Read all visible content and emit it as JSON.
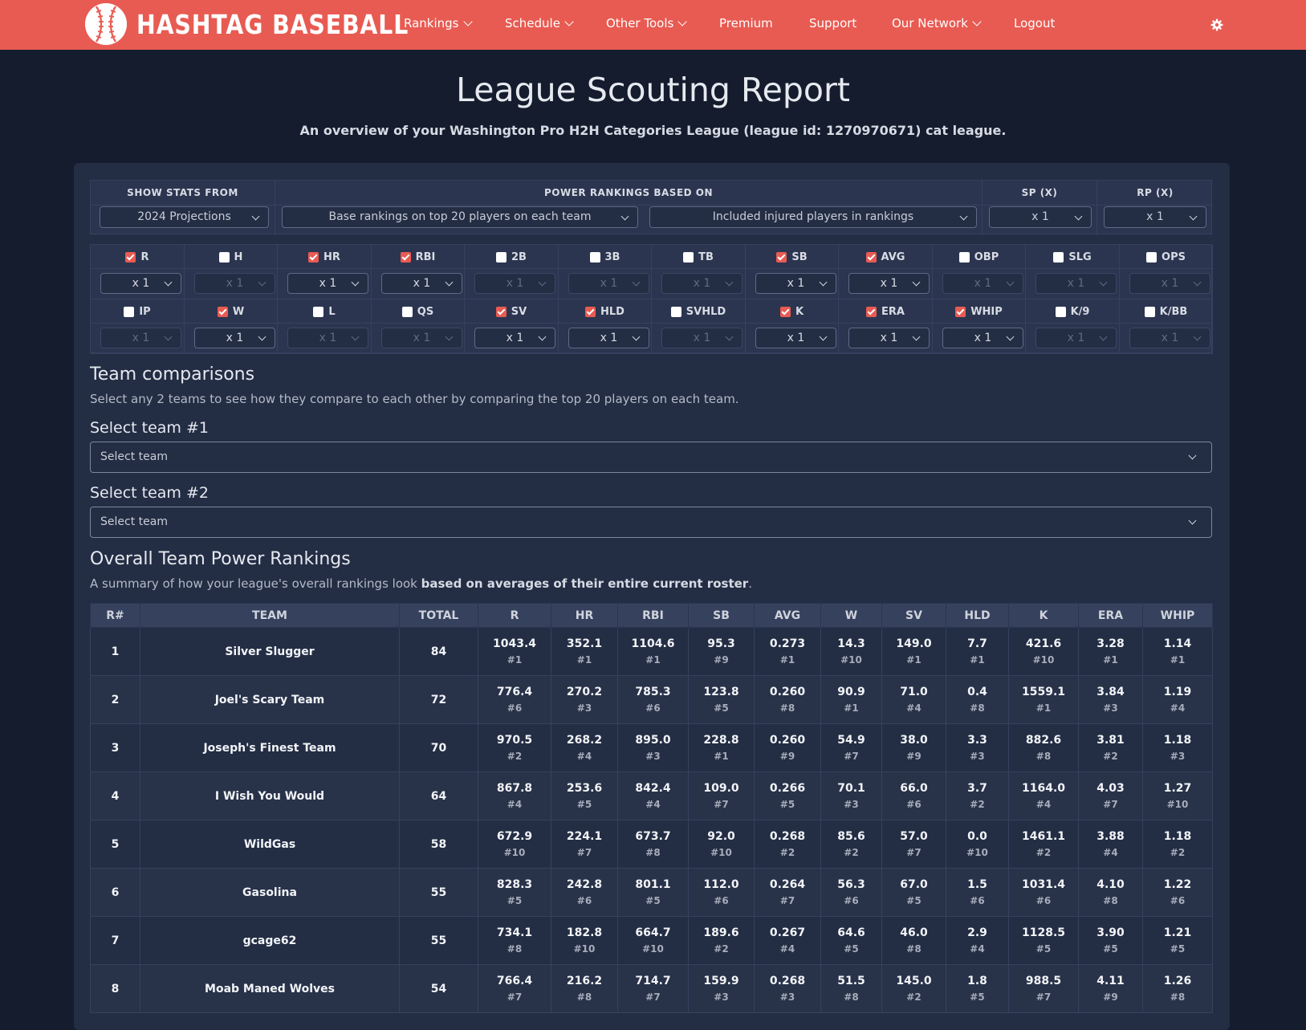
{
  "brand": {
    "name": "HASHTAG BASEBALL"
  },
  "nav": {
    "items": [
      {
        "label": "Rankings",
        "dropdown": true
      },
      {
        "label": "Schedule",
        "dropdown": true
      },
      {
        "label": "Other Tools",
        "dropdown": true
      },
      {
        "label": "Premium",
        "dropdown": false
      },
      {
        "label": "Support",
        "dropdown": false
      },
      {
        "label": "Our Network",
        "dropdown": true
      },
      {
        "label": "Logout",
        "dropdown": false
      }
    ]
  },
  "colors": {
    "accent": "#e85b52",
    "background": "#141c2e",
    "panel": "#232d44"
  },
  "page": {
    "title": "League Scouting Report",
    "subtitle": "An overview of your Washington Pro H2H Categories League (league id: 1270970671) cat league."
  },
  "settings": {
    "show_stats_header": "SHOW STATS FROM",
    "power_header": "POWER RANKINGS BASED ON",
    "sp_header": "SP (X)",
    "rp_header": "RP (X)",
    "stats_source": "2024 Projections",
    "base_rankings": "Base rankings on top 20 players on each team",
    "injured": "Included injured players in rankings",
    "sp_mult": "x 1",
    "rp_mult": "x 1"
  },
  "categories": {
    "row1": [
      {
        "label": "R",
        "checked": true,
        "mult": "x 1"
      },
      {
        "label": "H",
        "checked": false,
        "mult": "x 1"
      },
      {
        "label": "HR",
        "checked": true,
        "mult": "x 1"
      },
      {
        "label": "RBI",
        "checked": true,
        "mult": "x 1"
      },
      {
        "label": "2B",
        "checked": false,
        "mult": "x 1"
      },
      {
        "label": "3B",
        "checked": false,
        "mult": "x 1"
      },
      {
        "label": "TB",
        "checked": false,
        "mult": "x 1"
      },
      {
        "label": "SB",
        "checked": true,
        "mult": "x 1"
      },
      {
        "label": "AVG",
        "checked": true,
        "mult": "x 1"
      },
      {
        "label": "OBP",
        "checked": false,
        "mult": "x 1"
      },
      {
        "label": "SLG",
        "checked": false,
        "mult": "x 1"
      },
      {
        "label": "OPS",
        "checked": false,
        "mult": "x 1"
      }
    ],
    "row2": [
      {
        "label": "IP",
        "checked": false,
        "mult": "x 1"
      },
      {
        "label": "W",
        "checked": true,
        "mult": "x 1"
      },
      {
        "label": "L",
        "checked": false,
        "mult": "x 1"
      },
      {
        "label": "QS",
        "checked": false,
        "mult": "x 1"
      },
      {
        "label": "SV",
        "checked": true,
        "mult": "x 1"
      },
      {
        "label": "HLD",
        "checked": true,
        "mult": "x 1"
      },
      {
        "label": "SVHLD",
        "checked": false,
        "mult": "x 1"
      },
      {
        "label": "K",
        "checked": true,
        "mult": "x 1"
      },
      {
        "label": "ERA",
        "checked": true,
        "mult": "x 1"
      },
      {
        "label": "WHIP",
        "checked": true,
        "mult": "x 1"
      },
      {
        "label": "K/9",
        "checked": false,
        "mult": "x 1"
      },
      {
        "label": "K/BB",
        "checked": false,
        "mult": "x 1"
      }
    ]
  },
  "comparisons": {
    "heading": "Team comparisons",
    "description": "Select any 2 teams to see how they compare to each other by comparing the top 20 players on each team.",
    "team1_label": "Select team #1",
    "team1_placeholder": "Select team",
    "team2_label": "Select team #2",
    "team2_placeholder": "Select team"
  },
  "power": {
    "heading": "Overall Team Power Rankings",
    "desc_prefix": "A summary of how your league's overall rankings look ",
    "desc_bold": "based on averages of their entire current roster",
    "desc_suffix": ".",
    "columns": [
      "R#",
      "TEAM",
      "TOTAL",
      "R",
      "HR",
      "RBI",
      "SB",
      "AVG",
      "W",
      "SV",
      "HLD",
      "K",
      "ERA",
      "WHIP"
    ],
    "rows": [
      {
        "rank": "1",
        "team": "Silver Slugger",
        "total": "84",
        "stats": [
          [
            "1043.4",
            "#1"
          ],
          [
            "352.1",
            "#1"
          ],
          [
            "1104.6",
            "#1"
          ],
          [
            "95.3",
            "#9"
          ],
          [
            "0.273",
            "#1"
          ],
          [
            "14.3",
            "#10"
          ],
          [
            "149.0",
            "#1"
          ],
          [
            "7.7",
            "#1"
          ],
          [
            "421.6",
            "#10"
          ],
          [
            "3.28",
            "#1"
          ],
          [
            "1.14",
            "#1"
          ]
        ]
      },
      {
        "rank": "2",
        "team": "Joel's Scary Team",
        "total": "72",
        "stats": [
          [
            "776.4",
            "#6"
          ],
          [
            "270.2",
            "#3"
          ],
          [
            "785.3",
            "#6"
          ],
          [
            "123.8",
            "#5"
          ],
          [
            "0.260",
            "#8"
          ],
          [
            "90.9",
            "#1"
          ],
          [
            "71.0",
            "#4"
          ],
          [
            "0.4",
            "#8"
          ],
          [
            "1559.1",
            "#1"
          ],
          [
            "3.84",
            "#3"
          ],
          [
            "1.19",
            "#4"
          ]
        ]
      },
      {
        "rank": "3",
        "team": "Joseph's Finest Team",
        "total": "70",
        "stats": [
          [
            "970.5",
            "#2"
          ],
          [
            "268.2",
            "#4"
          ],
          [
            "895.0",
            "#3"
          ],
          [
            "228.8",
            "#1"
          ],
          [
            "0.260",
            "#9"
          ],
          [
            "54.9",
            "#7"
          ],
          [
            "38.0",
            "#9"
          ],
          [
            "3.3",
            "#3"
          ],
          [
            "882.6",
            "#8"
          ],
          [
            "3.81",
            "#2"
          ],
          [
            "1.18",
            "#3"
          ]
        ]
      },
      {
        "rank": "4",
        "team": "I Wish You Would",
        "total": "64",
        "stats": [
          [
            "867.8",
            "#4"
          ],
          [
            "253.6",
            "#5"
          ],
          [
            "842.4",
            "#4"
          ],
          [
            "109.0",
            "#7"
          ],
          [
            "0.266",
            "#5"
          ],
          [
            "70.1",
            "#3"
          ],
          [
            "66.0",
            "#6"
          ],
          [
            "3.7",
            "#2"
          ],
          [
            "1164.0",
            "#4"
          ],
          [
            "4.03",
            "#7"
          ],
          [
            "1.27",
            "#10"
          ]
        ]
      },
      {
        "rank": "5",
        "team": "WildGas",
        "total": "58",
        "stats": [
          [
            "672.9",
            "#10"
          ],
          [
            "224.1",
            "#7"
          ],
          [
            "673.7",
            "#8"
          ],
          [
            "92.0",
            "#10"
          ],
          [
            "0.268",
            "#2"
          ],
          [
            "85.6",
            "#2"
          ],
          [
            "57.0",
            "#7"
          ],
          [
            "0.0",
            "#10"
          ],
          [
            "1461.1",
            "#2"
          ],
          [
            "3.88",
            "#4"
          ],
          [
            "1.18",
            "#2"
          ]
        ]
      },
      {
        "rank": "6",
        "team": "Gasolina",
        "total": "55",
        "stats": [
          [
            "828.3",
            "#5"
          ],
          [
            "242.8",
            "#6"
          ],
          [
            "801.1",
            "#5"
          ],
          [
            "112.0",
            "#6"
          ],
          [
            "0.264",
            "#7"
          ],
          [
            "56.3",
            "#6"
          ],
          [
            "67.0",
            "#5"
          ],
          [
            "1.5",
            "#6"
          ],
          [
            "1031.4",
            "#6"
          ],
          [
            "4.10",
            "#8"
          ],
          [
            "1.22",
            "#6"
          ]
        ]
      },
      {
        "rank": "7",
        "team": "gcage62",
        "total": "55",
        "stats": [
          [
            "734.1",
            "#8"
          ],
          [
            "182.8",
            "#10"
          ],
          [
            "664.7",
            "#10"
          ],
          [
            "189.6",
            "#2"
          ],
          [
            "0.267",
            "#4"
          ],
          [
            "64.6",
            "#5"
          ],
          [
            "46.0",
            "#8"
          ],
          [
            "2.9",
            "#4"
          ],
          [
            "1128.5",
            "#5"
          ],
          [
            "3.90",
            "#5"
          ],
          [
            "1.21",
            "#5"
          ]
        ]
      },
      {
        "rank": "8",
        "team": "Moab Maned Wolves",
        "total": "54",
        "stats": [
          [
            "766.4",
            "#7"
          ],
          [
            "216.2",
            "#8"
          ],
          [
            "714.7",
            "#7"
          ],
          [
            "159.9",
            "#3"
          ],
          [
            "0.268",
            "#3"
          ],
          [
            "51.5",
            "#8"
          ],
          [
            "145.0",
            "#2"
          ],
          [
            "1.8",
            "#5"
          ],
          [
            "988.5",
            "#7"
          ],
          [
            "4.11",
            "#9"
          ],
          [
            "1.26",
            "#8"
          ]
        ]
      }
    ]
  }
}
